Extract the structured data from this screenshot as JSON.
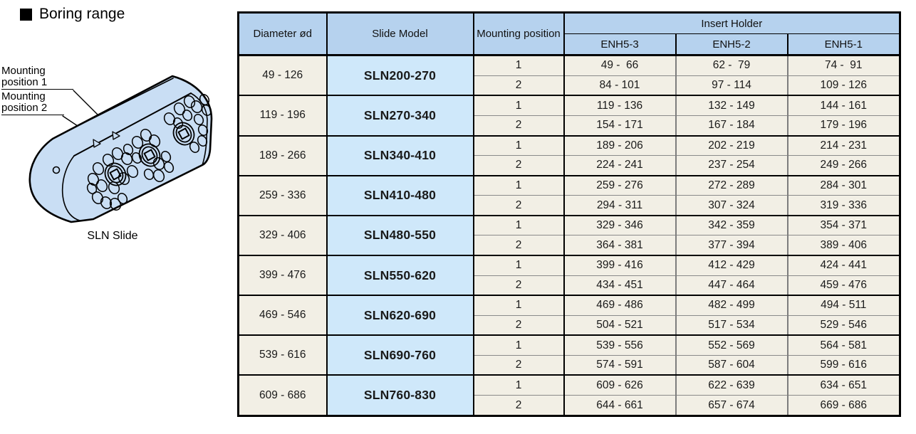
{
  "title": {
    "label": "Boring range"
  },
  "diagram": {
    "caption": "SLN Slide",
    "label_position_1": "Mounting position 1",
    "label_position_2": "Mounting position 2"
  },
  "table": {
    "headers": {
      "diameter": "Diameter ød",
      "model": "Slide Model",
      "mounting": "Mounting position",
      "insert_holder": "Insert Holder",
      "enh5_3": "ENH5-3",
      "enh5_2": "ENH5-2",
      "enh5_1": "ENH5-1"
    },
    "groups": [
      {
        "diameter": "49 - 126",
        "model": "SLN200-270",
        "rows": [
          {
            "position": "1",
            "enh5_3": "49 -  66",
            "enh5_2": "62 -  79",
            "enh5_1": "74 -  91"
          },
          {
            "position": "2",
            "enh5_3": "84 - 101",
            "enh5_2": "97 - 114",
            "enh5_1": "109 - 126"
          }
        ]
      },
      {
        "diameter": "119 - 196",
        "model": "SLN270-340",
        "rows": [
          {
            "position": "1",
            "enh5_3": "119 - 136",
            "enh5_2": "132 - 149",
            "enh5_1": "144 - 161"
          },
          {
            "position": "2",
            "enh5_3": "154 - 171",
            "enh5_2": "167 - 184",
            "enh5_1": "179 - 196"
          }
        ]
      },
      {
        "diameter": "189 - 266",
        "model": "SLN340-410",
        "rows": [
          {
            "position": "1",
            "enh5_3": "189 - 206",
            "enh5_2": "202 - 219",
            "enh5_1": "214 - 231"
          },
          {
            "position": "2",
            "enh5_3": "224 - 241",
            "enh5_2": "237 - 254",
            "enh5_1": "249 - 266"
          }
        ]
      },
      {
        "diameter": "259 - 336",
        "model": "SLN410-480",
        "rows": [
          {
            "position": "1",
            "enh5_3": "259 - 276",
            "enh5_2": "272 - 289",
            "enh5_1": "284 - 301"
          },
          {
            "position": "2",
            "enh5_3": "294 - 311",
            "enh5_2": "307 - 324",
            "enh5_1": "319 - 336"
          }
        ]
      },
      {
        "diameter": "329 - 406",
        "model": "SLN480-550",
        "rows": [
          {
            "position": "1",
            "enh5_3": "329 - 346",
            "enh5_2": "342 - 359",
            "enh5_1": "354 - 371"
          },
          {
            "position": "2",
            "enh5_3": "364 - 381",
            "enh5_2": "377 - 394",
            "enh5_1": "389 - 406"
          }
        ]
      },
      {
        "diameter": "399 - 476",
        "model": "SLN550-620",
        "rows": [
          {
            "position": "1",
            "enh5_3": "399 - 416",
            "enh5_2": "412 - 429",
            "enh5_1": "424 - 441"
          },
          {
            "position": "2",
            "enh5_3": "434 - 451",
            "enh5_2": "447 - 464",
            "enh5_1": "459 - 476"
          }
        ]
      },
      {
        "diameter": "469 - 546",
        "model": "SLN620-690",
        "rows": [
          {
            "position": "1",
            "enh5_3": "469 - 486",
            "enh5_2": "482 - 499",
            "enh5_1": "494 - 511"
          },
          {
            "position": "2",
            "enh5_3": "504 - 521",
            "enh5_2": "517 - 534",
            "enh5_1": "529 - 546"
          }
        ]
      },
      {
        "diameter": "539 - 616",
        "model": "SLN690-760",
        "rows": [
          {
            "position": "1",
            "enh5_3": "539 - 556",
            "enh5_2": "552 - 569",
            "enh5_1": "564 - 581"
          },
          {
            "position": "2",
            "enh5_3": "574 - 591",
            "enh5_2": "587 - 604",
            "enh5_1": "599 - 616"
          }
        ]
      },
      {
        "diameter": "609 - 686",
        "model": "SLN760-830",
        "rows": [
          {
            "position": "1",
            "enh5_3": "609 - 626",
            "enh5_2": "622 - 639",
            "enh5_1": "634 - 651"
          },
          {
            "position": "2",
            "enh5_3": "644 - 661",
            "enh5_2": "657 - 674",
            "enh5_1": "669 - 686"
          }
        ]
      }
    ]
  },
  "colors": {
    "header_blue": "#b6d2ee",
    "model_blue": "#cfe8fa",
    "cell_cream": "#f2efe5",
    "diagram_blue": "#c9def4",
    "line_black": "#000000",
    "line_gray": "#7d7d7d"
  }
}
